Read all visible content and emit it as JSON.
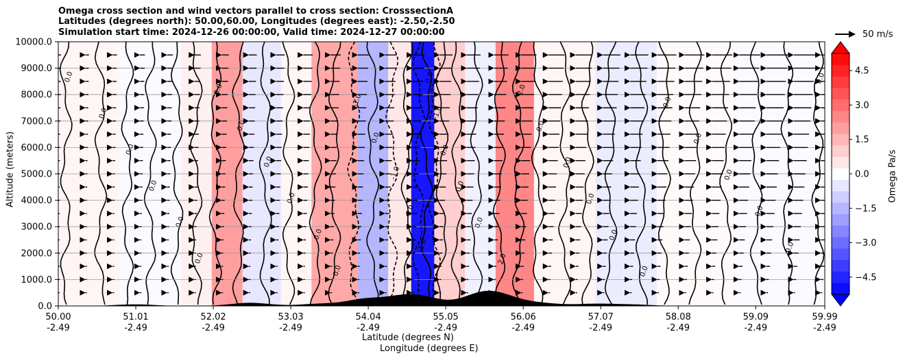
{
  "header": {
    "title_line1": "Omega cross section and wind vectors parallel to cross section: CrosssectionA",
    "title_line2": "Latitudes (degrees north): 50.00,60.00, Longitudes (degrees east): -2.50,-2.50",
    "title_line3": "Simulation start time: 2024-12-26 00:00:00, Valid time: 2024-12-27 00:00:00"
  },
  "chart_data": {
    "type": "heatmap",
    "title": "Omega cross section and wind vectors parallel to cross section: CrosssectionA",
    "ylabel": "Altitude (meters)",
    "xlabel_line1": "Latitude (degrees N)",
    "xlabel_line2": "Longitude (degrees E)",
    "ylim": [
      0,
      10000
    ],
    "xlim": [
      50.0,
      59.99
    ],
    "y_ticks": [
      "0.0",
      "1000.0",
      "2000.0",
      "3000.0",
      "4000.0",
      "5000.0",
      "6000.0",
      "7000.0",
      "8000.0",
      "9000.0",
      "10000.0"
    ],
    "x_ticks": [
      {
        "lat": "50.00",
        "lon": "-2.49"
      },
      {
        "lat": "51.01",
        "lon": "-2.49"
      },
      {
        "lat": "52.02",
        "lon": "-2.49"
      },
      {
        "lat": "53.03",
        "lon": "-2.49"
      },
      {
        "lat": "54.04",
        "lon": "-2.49"
      },
      {
        "lat": "55.05",
        "lon": "-2.49"
      },
      {
        "lat": "56.06",
        "lon": "-2.49"
      },
      {
        "lat": "57.07",
        "lon": "-2.49"
      },
      {
        "lat": "58.08",
        "lon": "-2.49"
      },
      {
        "lat": "59.09",
        "lon": "-2.49"
      },
      {
        "lat": "59.99",
        "lon": "-2.49"
      }
    ],
    "grid": "horizontal",
    "colorbar": {
      "label": "Omega Pa/s",
      "range": [
        -5.25,
        5.25
      ],
      "ticks": [
        "4.5",
        "3.0",
        "1.5",
        "0.0",
        "−1.5",
        "−3.0",
        "−4.5"
      ],
      "colormap": "bwr",
      "extend": "both"
    },
    "reference_vector_label": "50 m/s",
    "omega_bands": [
      {
        "lat_start": 50.0,
        "lat_end": 50.8,
        "omega": 0.2
      },
      {
        "lat_start": 50.8,
        "lat_end": 51.6,
        "omega": -0.1
      },
      {
        "lat_start": 51.6,
        "lat_end": 52.0,
        "omega": 0.3
      },
      {
        "lat_start": 52.0,
        "lat_end": 52.4,
        "omega": 2.0
      },
      {
        "lat_start": 52.4,
        "lat_end": 52.9,
        "omega": -0.5
      },
      {
        "lat_start": 52.9,
        "lat_end": 53.3,
        "omega": 0.2
      },
      {
        "lat_start": 53.3,
        "lat_end": 53.9,
        "omega": 1.8
      },
      {
        "lat_start": 53.9,
        "lat_end": 54.3,
        "omega": -1.5
      },
      {
        "lat_start": 54.3,
        "lat_end": 54.6,
        "omega": 0.5
      },
      {
        "lat_start": 54.6,
        "lat_end": 54.9,
        "omega": -4.8
      },
      {
        "lat_start": 54.9,
        "lat_end": 55.3,
        "omega": 1.0
      },
      {
        "lat_start": 55.3,
        "lat_end": 55.7,
        "omega": -0.3
      },
      {
        "lat_start": 55.7,
        "lat_end": 56.2,
        "omega": 2.5
      },
      {
        "lat_start": 56.2,
        "lat_end": 57.0,
        "omega": 0.2
      },
      {
        "lat_start": 57.0,
        "lat_end": 57.8,
        "omega": -0.4
      },
      {
        "lat_start": 57.8,
        "lat_end": 58.8,
        "omega": 0.1
      },
      {
        "lat_start": 58.8,
        "lat_end": 59.99,
        "omega": -0.1
      }
    ],
    "contour_labels": [
      "0.0",
      "-1.0",
      "1.0",
      "2.0"
    ]
  }
}
